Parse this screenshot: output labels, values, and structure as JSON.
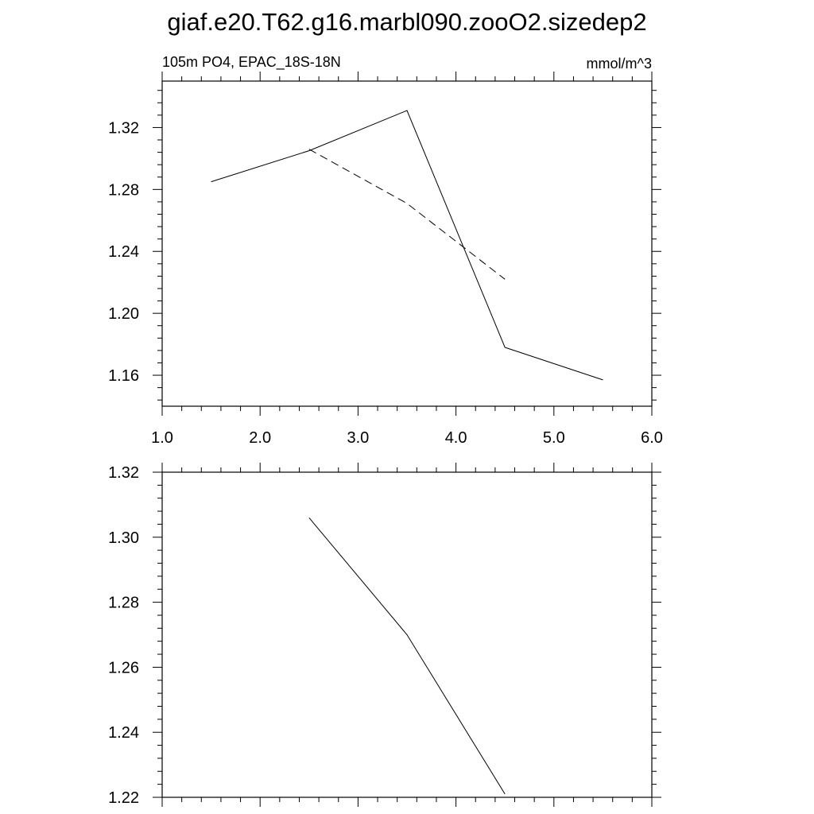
{
  "title": "giaf.e20.T62.g16.marbl090.zooO2.sizedep2",
  "chart_data": [
    {
      "type": "line",
      "left_label": "105m PO4, EPAC_18S-18N",
      "right_label": "mmol/m^3",
      "xlim": [
        1.0,
        6.0
      ],
      "ylim": [
        1.14,
        1.35
      ],
      "x_ticks": [
        "1.0",
        "2.0",
        "3.0",
        "4.0",
        "5.0",
        "6.0"
      ],
      "y_ticks": [
        "1.16",
        "1.20",
        "1.24",
        "1.28",
        "1.32"
      ],
      "grid": false,
      "series": [
        {
          "style": "solid",
          "color": "#000000",
          "x": [
            1.5,
            2.5,
            3.5,
            4.5,
            5.5
          ],
          "y": [
            1.285,
            1.305,
            1.331,
            1.178,
            1.157
          ]
        },
        {
          "style": "dashed",
          "color": "#000000",
          "x": [
            2.5,
            3.5,
            4.5
          ],
          "y": [
            1.306,
            1.271,
            1.222
          ]
        }
      ]
    },
    {
      "type": "line",
      "xlim": [
        1.0,
        6.0
      ],
      "ylim": [
        1.22,
        1.32
      ],
      "y_ticks": [
        "1.22",
        "1.24",
        "1.26",
        "1.28",
        "1.30",
        "1.32"
      ],
      "grid": false,
      "series": [
        {
          "style": "solid",
          "color": "#000000",
          "x": [
            2.5,
            3.5,
            4.5
          ],
          "y": [
            1.306,
            1.27,
            1.221
          ]
        }
      ]
    }
  ]
}
